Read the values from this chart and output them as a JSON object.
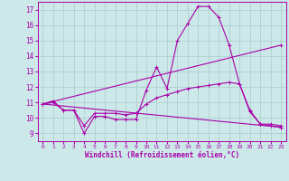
{
  "background_color": "#cce8e8",
  "grid_color": "#aacccc",
  "line_color": "#aa00aa",
  "xlabel": "Windchill (Refroidissement éolien,°C)",
  "ylabel_values": [
    9,
    10,
    11,
    12,
    13,
    14,
    15,
    16,
    17
  ],
  "xlim": [
    -0.5,
    23.5
  ],
  "ylim": [
    8.5,
    17.5
  ],
  "lines": [
    {
      "x": [
        0,
        1,
        2,
        3,
        4,
        5,
        6,
        7,
        8,
        9,
        10,
        11,
        12,
        13,
        14,
        15,
        16,
        17,
        18,
        19,
        20,
        21,
        22,
        23
      ],
      "y": [
        10.9,
        11.1,
        10.5,
        10.5,
        9.0,
        10.1,
        10.1,
        9.9,
        9.9,
        9.9,
        11.8,
        13.3,
        11.9,
        15.0,
        16.1,
        17.2,
        17.2,
        16.5,
        14.7,
        12.2,
        10.5,
        9.6,
        9.5,
        9.4
      ]
    },
    {
      "x": [
        0,
        1,
        2,
        3,
        4,
        5,
        6,
        7,
        8,
        9,
        10,
        11,
        12,
        13,
        14,
        15,
        16,
        17,
        18,
        19,
        20,
        21,
        22,
        23
      ],
      "y": [
        10.9,
        11.0,
        10.5,
        10.5,
        9.5,
        10.3,
        10.3,
        10.3,
        10.2,
        10.3,
        10.9,
        11.3,
        11.5,
        11.7,
        11.9,
        12.0,
        12.1,
        12.2,
        12.3,
        12.2,
        10.4,
        9.6,
        9.6,
        9.5
      ]
    },
    {
      "x": [
        0,
        23
      ],
      "y": [
        10.9,
        14.7
      ]
    },
    {
      "x": [
        0,
        23
      ],
      "y": [
        10.9,
        9.4
      ]
    }
  ]
}
